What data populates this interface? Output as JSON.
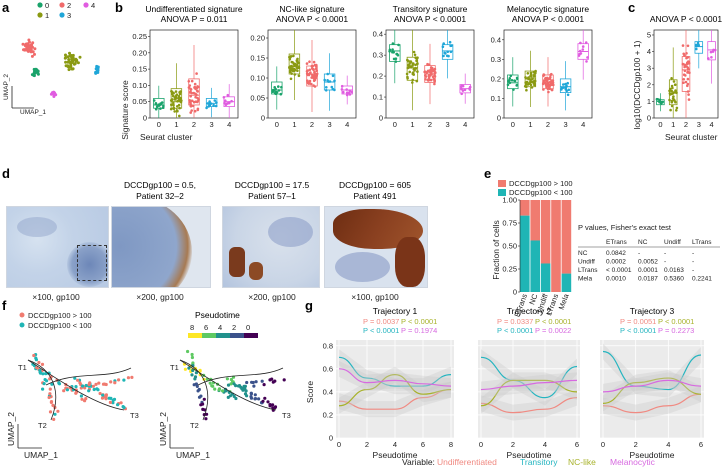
{
  "colors": {
    "cluster": [
      "#1aa36b",
      "#8a9a12",
      "#f06a6a",
      "#1fa6d8",
      "#e05ce0"
    ],
    "high": "#f07b70",
    "low": "#1fb5b5",
    "undiff": "#f08a82",
    "trans": "#25b5c0",
    "nclike": "#a7b22a",
    "melano": "#d76ae0"
  },
  "panel_a": {
    "label": "a",
    "legend": [
      "0",
      "1",
      "2",
      "3",
      "4"
    ],
    "xlabel": "UMAP_1",
    "ylabel": "UMAP_2"
  },
  "panel_b": {
    "label": "b",
    "ylabel": "Signature score",
    "xlabel": "Seurat cluster",
    "plots": [
      {
        "title": "Undifferentiated signature",
        "anova": "ANOVA P = 0.011",
        "ticks": [
          "0",
          "0.05",
          "0.10",
          "0.15",
          "0.20",
          "0.25"
        ]
      },
      {
        "title": "NC-like signature",
        "anova": "ANOVA P < 0.0001",
        "ticks": [
          "0",
          "0.05",
          "0.10",
          "0.15",
          "0.20"
        ]
      },
      {
        "title": "Transitory signature",
        "anova": "ANOVA P < 0.0001",
        "ticks": [
          "0",
          "0.1",
          "0.2",
          "0.3",
          "0.4"
        ]
      },
      {
        "title": "Melanocytic signature",
        "anova": "ANOVA P < 0.0001",
        "ticks": [
          "0",
          "0.1",
          "0.2",
          "0.3",
          "0.4"
        ]
      }
    ],
    "clusters": [
      "0",
      "1",
      "2",
      "3",
      "4"
    ]
  },
  "panel_c": {
    "label": "c",
    "anova": "ANOVA P < 0.0001",
    "ylabel": "log10(DCCDgp100 + 1)",
    "xlabel": "Seurat cluster",
    "ticks": [
      "0",
      "1",
      "2",
      "3",
      "4",
      "5"
    ],
    "clusters": [
      "0",
      "1",
      "2",
      "3",
      "4"
    ]
  },
  "panel_d": {
    "label": "d",
    "titles": [
      [
        "DCCDgp100 = 0.5,",
        "Patient 32–2"
      ],
      [
        "DCCDgp100 = 17.5",
        "Patient 57–1"
      ],
      [
        "DCCDgp100 = 605",
        "Patient 491"
      ]
    ],
    "captions": [
      "×100, gp100",
      "×200, gp100",
      "×200, gp100",
      "×100, gp100"
    ],
    "scalebars": [
      "100 µm",
      "100 µm",
      "100 µm",
      "100 µm"
    ]
  },
  "panel_e": {
    "label": "e",
    "legend": [
      "DCCDgp100 > 100",
      "DCCDgp100 < 100"
    ],
    "ylabel": "Fraction of cells",
    "ticks": [
      "0",
      "0.25",
      "0.50",
      "0.75",
      "1.00"
    ],
    "table_title": "P values, Fisher's exact test",
    "table_header": [
      "",
      "ETrans",
      "NC",
      "Undiff",
      "LTrans"
    ],
    "table_rows": [
      [
        "NC",
        "0.0842",
        "-",
        "-",
        "-"
      ],
      [
        "Undiff",
        "0.0002",
        "0.0052",
        "-",
        "-"
      ],
      [
        "LTrans",
        "< 0.0001",
        "0.0001",
        "0.0163",
        "-"
      ],
      [
        "Mela",
        "0.0010",
        "0.0187",
        "0.5360",
        "0.2241"
      ]
    ]
  },
  "panel_f": {
    "label": "f",
    "legend": [
      "DCCDgp100 > 100",
      "DCCDgp100 < 100"
    ],
    "pseudotime_title": "Pseudotime",
    "pseudotime_ticks": [
      "8",
      "6",
      "4",
      "2",
      "0"
    ],
    "trajectories": [
      "T1",
      "T2",
      "T3"
    ],
    "xlabel": "UMAP_1",
    "ylabel": "UMAP_2"
  },
  "panel_g": {
    "label": "g",
    "ylabel": "Score",
    "xlabel": "Pseudotime",
    "y_ticks": [
      "0",
      "0.2",
      "0.4",
      "0.6",
      "0.8"
    ],
    "plots": [
      {
        "title": "Trajectory 1",
        "p": [
          "P = 0.0037",
          "P < 0.0001",
          "P < 0.0001",
          "P = 0.1974"
        ],
        "x_ticks": [
          "0",
          "2",
          "4",
          "6",
          "8"
        ]
      },
      {
        "title": "Trajectory 2",
        "p": [
          "P = 0.0337",
          "P < 0.0001",
          "P < 0.0001",
          "P = 0.0022"
        ],
        "x_ticks": [
          "0",
          "2",
          "4",
          "6"
        ]
      },
      {
        "title": "Trajectory 3",
        "p": [
          "P = 0.0051",
          "P < 0.0001",
          "P < 0.0001",
          "P = 0.2273"
        ],
        "x_ticks": [
          "0",
          "2",
          "4",
          "6"
        ]
      }
    ],
    "variable_label": "Variable:",
    "variables": [
      "Undifferentiated",
      "Transitory",
      "NC-like",
      "Melanocytic"
    ]
  },
  "chart_data": [
    {
      "type": "scatter",
      "title": "",
      "xlabel": "UMAP_1",
      "ylabel": "UMAP_2",
      "series": [
        {
          "name": "0"
        },
        {
          "name": "1"
        },
        {
          "name": "2"
        },
        {
          "name": "3"
        },
        {
          "name": "4"
        }
      ]
    },
    {
      "type": "box",
      "title": "Undifferentiated signature",
      "xlabel": "Seurat cluster",
      "ylabel": "Signature score",
      "ylim": [
        0,
        0.27
      ],
      "categories": [
        "0",
        "1",
        "2",
        "3",
        "4"
      ],
      "medians": [
        0.04,
        0.05,
        0.07,
        0.045,
        0.05
      ],
      "q1": [
        0.03,
        0.03,
        0.04,
        0.035,
        0.035
      ],
      "q3": [
        0.06,
        0.09,
        0.12,
        0.06,
        0.065
      ]
    },
    {
      "type": "box",
      "title": "NC-like signature",
      "xlabel": "Seurat cluster",
      "ylabel": "Signature score",
      "ylim": [
        0,
        0.22
      ],
      "categories": [
        "0",
        "1",
        "2",
        "3",
        "4"
      ],
      "medians": [
        0.07,
        0.13,
        0.11,
        0.09,
        0.07
      ],
      "q1": [
        0.06,
        0.11,
        0.08,
        0.07,
        0.06
      ],
      "q3": [
        0.09,
        0.16,
        0.13,
        0.11,
        0.08
      ]
    },
    {
      "type": "box",
      "title": "Transitory signature",
      "xlabel": "Seurat cluster",
      "ylabel": "Signature score",
      "ylim": [
        0,
        0.42
      ],
      "categories": [
        "0",
        "1",
        "2",
        "3",
        "4"
      ],
      "medians": [
        0.32,
        0.24,
        0.21,
        0.32,
        0.14
      ],
      "q1": [
        0.27,
        0.18,
        0.17,
        0.28,
        0.12
      ],
      "q3": [
        0.35,
        0.29,
        0.25,
        0.35,
        0.16
      ]
    },
    {
      "type": "box",
      "title": "Melanocytic signature",
      "xlabel": "Seurat cluster",
      "ylabel": "Signature score",
      "ylim": [
        0,
        0.45
      ],
      "categories": [
        "0",
        "1",
        "2",
        "3",
        "4"
      ],
      "medians": [
        0.18,
        0.2,
        0.18,
        0.16,
        0.34
      ],
      "q1": [
        0.15,
        0.16,
        0.15,
        0.13,
        0.3
      ],
      "q3": [
        0.22,
        0.24,
        0.22,
        0.2,
        0.38
      ]
    },
    {
      "type": "box",
      "title": "ANOVA P < 0.0001",
      "xlabel": "Seurat cluster",
      "ylabel": "log10(DCCDgp100 + 1)",
      "ylim": [
        0,
        5.3
      ],
      "categories": [
        "0",
        "1",
        "2",
        "3",
        "4"
      ],
      "medians": [
        1.0,
        1.5,
        2.9,
        4.3,
        4.1
      ],
      "q1": [
        0.8,
        0.8,
        1.6,
        3.9,
        3.5
      ],
      "q3": [
        1.1,
        2.3,
        3.7,
        4.6,
        4.6
      ]
    },
    {
      "type": "bar",
      "title": "",
      "ylabel": "Fraction of cells",
      "ylim": [
        0,
        1
      ],
      "categories": [
        "ETrans",
        "NC",
        "Undiff",
        "LTrans",
        "Mela"
      ],
      "series": [
        {
          "name": "DCCDgp100 > 100",
          "values": [
            0.17,
            0.44,
            0.69,
            1.0,
            0.8
          ]
        },
        {
          "name": "DCCDgp100 < 100",
          "values": [
            0.83,
            0.56,
            0.31,
            0.0,
            0.2
          ]
        }
      ]
    },
    {
      "type": "line",
      "title": "Trajectory 1",
      "xlabel": "Pseudotime",
      "ylabel": "Score",
      "ylim": [
        0,
        0.85
      ],
      "x": [
        0,
        2,
        4,
        6,
        8
      ],
      "series": [
        {
          "name": "Undifferentiated",
          "values": [
            0.32,
            0.25,
            0.25,
            0.35,
            0.42
          ]
        },
        {
          "name": "Transitory",
          "values": [
            0.7,
            0.52,
            0.45,
            0.45,
            0.55
          ]
        },
        {
          "name": "NC-like",
          "values": [
            0.28,
            0.42,
            0.55,
            0.38,
            0.42
          ]
        },
        {
          "name": "Melanocytic",
          "values": [
            0.6,
            0.48,
            0.5,
            0.47,
            0.45
          ]
        }
      ]
    },
    {
      "type": "line",
      "title": "Trajectory 2",
      "xlabel": "Pseudotime",
      "ylabel": "Score",
      "ylim": [
        0,
        0.85
      ],
      "x": [
        0,
        2,
        4,
        6
      ],
      "series": [
        {
          "name": "Undifferentiated",
          "values": [
            0.3,
            0.22,
            0.25,
            0.35
          ]
        },
        {
          "name": "Transitory",
          "values": [
            0.7,
            0.5,
            0.35,
            0.62
          ]
        },
        {
          "name": "NC-like",
          "values": [
            0.28,
            0.5,
            0.5,
            0.4
          ]
        },
        {
          "name": "Melanocytic",
          "values": [
            0.42,
            0.45,
            0.48,
            0.5
          ]
        }
      ]
    },
    {
      "type": "line",
      "title": "Trajectory 3",
      "xlabel": "Pseudotime",
      "ylabel": "Score",
      "ylim": [
        0,
        0.85
      ],
      "x": [
        0,
        2,
        4,
        6
      ],
      "series": [
        {
          "name": "Undifferentiated",
          "values": [
            0.28,
            0.22,
            0.28,
            0.38
          ]
        },
        {
          "name": "Transitory",
          "values": [
            0.75,
            0.45,
            0.42,
            0.72
          ]
        },
        {
          "name": "NC-like",
          "values": [
            0.3,
            0.48,
            0.52,
            0.38
          ]
        },
        {
          "name": "Melanocytic",
          "values": [
            0.4,
            0.45,
            0.5,
            0.45
          ]
        }
      ]
    }
  ]
}
